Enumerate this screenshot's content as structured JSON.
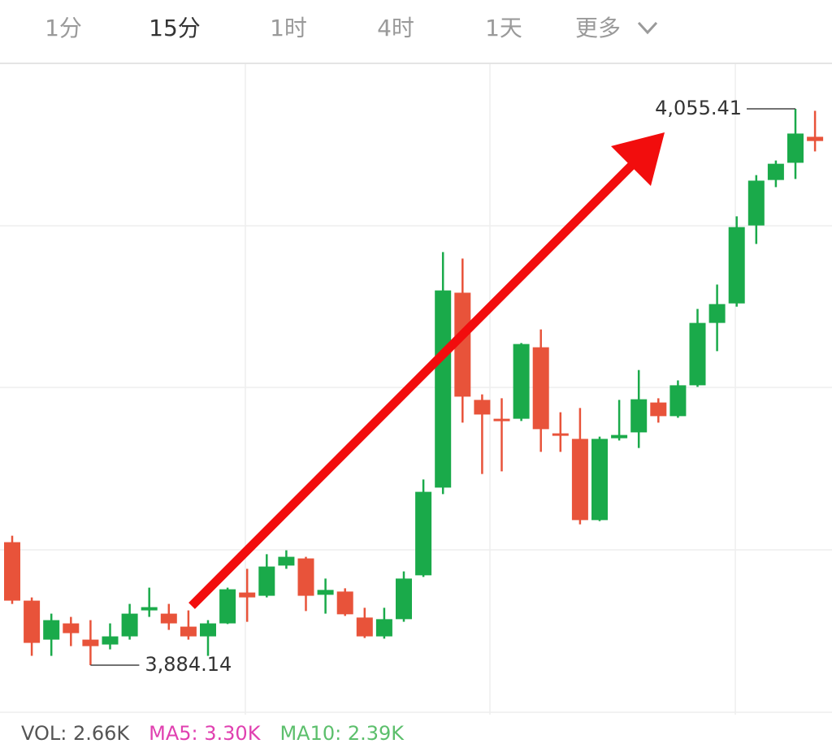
{
  "tabs": [
    {
      "label": "1分"
    },
    {
      "label": "15分",
      "active": true
    },
    {
      "label": "1时"
    },
    {
      "label": "4时"
    },
    {
      "label": "1天"
    },
    {
      "label": "更多"
    }
  ],
  "chart_data": {
    "type": "candlestick",
    "up_color": "#1aaa4a",
    "down_color": "#e8533a",
    "open": [
      3922,
      3904,
      3892,
      3897,
      3892,
      3890.5,
      3893,
      3901,
      3900,
      3896,
      3893,
      3897,
      3906.5,
      3905.5,
      3914.8,
      3917,
      3905.8,
      3906.8,
      3898.8,
      3893,
      3898.3,
      3911.8,
      3938.8,
      3998.8,
      3965.8,
      3960,
      3960,
      3982,
      3955.5,
      3953.8,
      3928.8,
      3954,
      3955.8,
      3965,
      3960.8,
      3970.3,
      3989.5,
      3995.5,
      4019.5,
      4033.5,
      4038.8,
      4046.8
    ],
    "high": [
      3924,
      3905,
      3900,
      3899,
      3898,
      3897,
      3903,
      3908,
      3903,
      3901,
      3898,
      3908,
      3913.8,
      3918.3,
      3919.5,
      3917.5,
      3910.8,
      3907.8,
      3901.8,
      3901.8,
      3913,
      3941.3,
      4011.3,
      4009.3,
      3967.5,
      3966.3,
      3983.3,
      3987.5,
      3962,
      3963.3,
      3954.5,
      3965.8,
      3975,
      3966.3,
      3971.8,
      3993.8,
      4001.3,
      4022.3,
      4035,
      4039.5,
      4055.41,
      4054.8
    ],
    "low": [
      3903,
      3887,
      3887,
      3890,
      3884.14,
      3889,
      3892,
      3899,
      3895,
      3892,
      3887,
      3896.8,
      3897.5,
      3905,
      3913.8,
      3900.8,
      3900,
      3899.3,
      3892.5,
      3892.3,
      3897.5,
      3911.3,
      3936.8,
      3958.8,
      3943,
      3943.8,
      3959.3,
      3949.8,
      3949.8,
      3927.5,
      3928.5,
      3953.3,
      3951,
      3958.8,
      3960.3,
      3969.8,
      3980.8,
      3994.5,
      4013.8,
      4031.3,
      4033.8,
      4042.3
    ],
    "close": [
      3904,
      3891,
      3898,
      3894,
      3890,
      3893,
      3900,
      3902,
      3897,
      3893,
      3897,
      3907.5,
      3905,
      3914.5,
      3917.5,
      3905.5,
      3907.3,
      3899.8,
      3893,
      3898.3,
      3910.8,
      3937.5,
      3999.5,
      3966.8,
      3961.3,
      3959.3,
      3983,
      3956.8,
      3954.8,
      3928.8,
      3953.8,
      3955,
      3966,
      3960.8,
      3970.3,
      3989.5,
      3995.3,
      4019,
      4033.3,
      4038.5,
      4047.8,
      4045.5
    ],
    "annotations": [
      {
        "value": 4055.41,
        "label": "4,055.41"
      },
      {
        "value": 3884.14,
        "label": "3,884.14"
      }
    ]
  },
  "volume": [
    {
      "label": "VOL: 2.66K",
      "color": "#555555"
    },
    {
      "label": "MA5: 3.30K",
      "color": "#e040b0"
    },
    {
      "label": "MA10: 2.39K",
      "color": "#5cbf6c"
    }
  ]
}
